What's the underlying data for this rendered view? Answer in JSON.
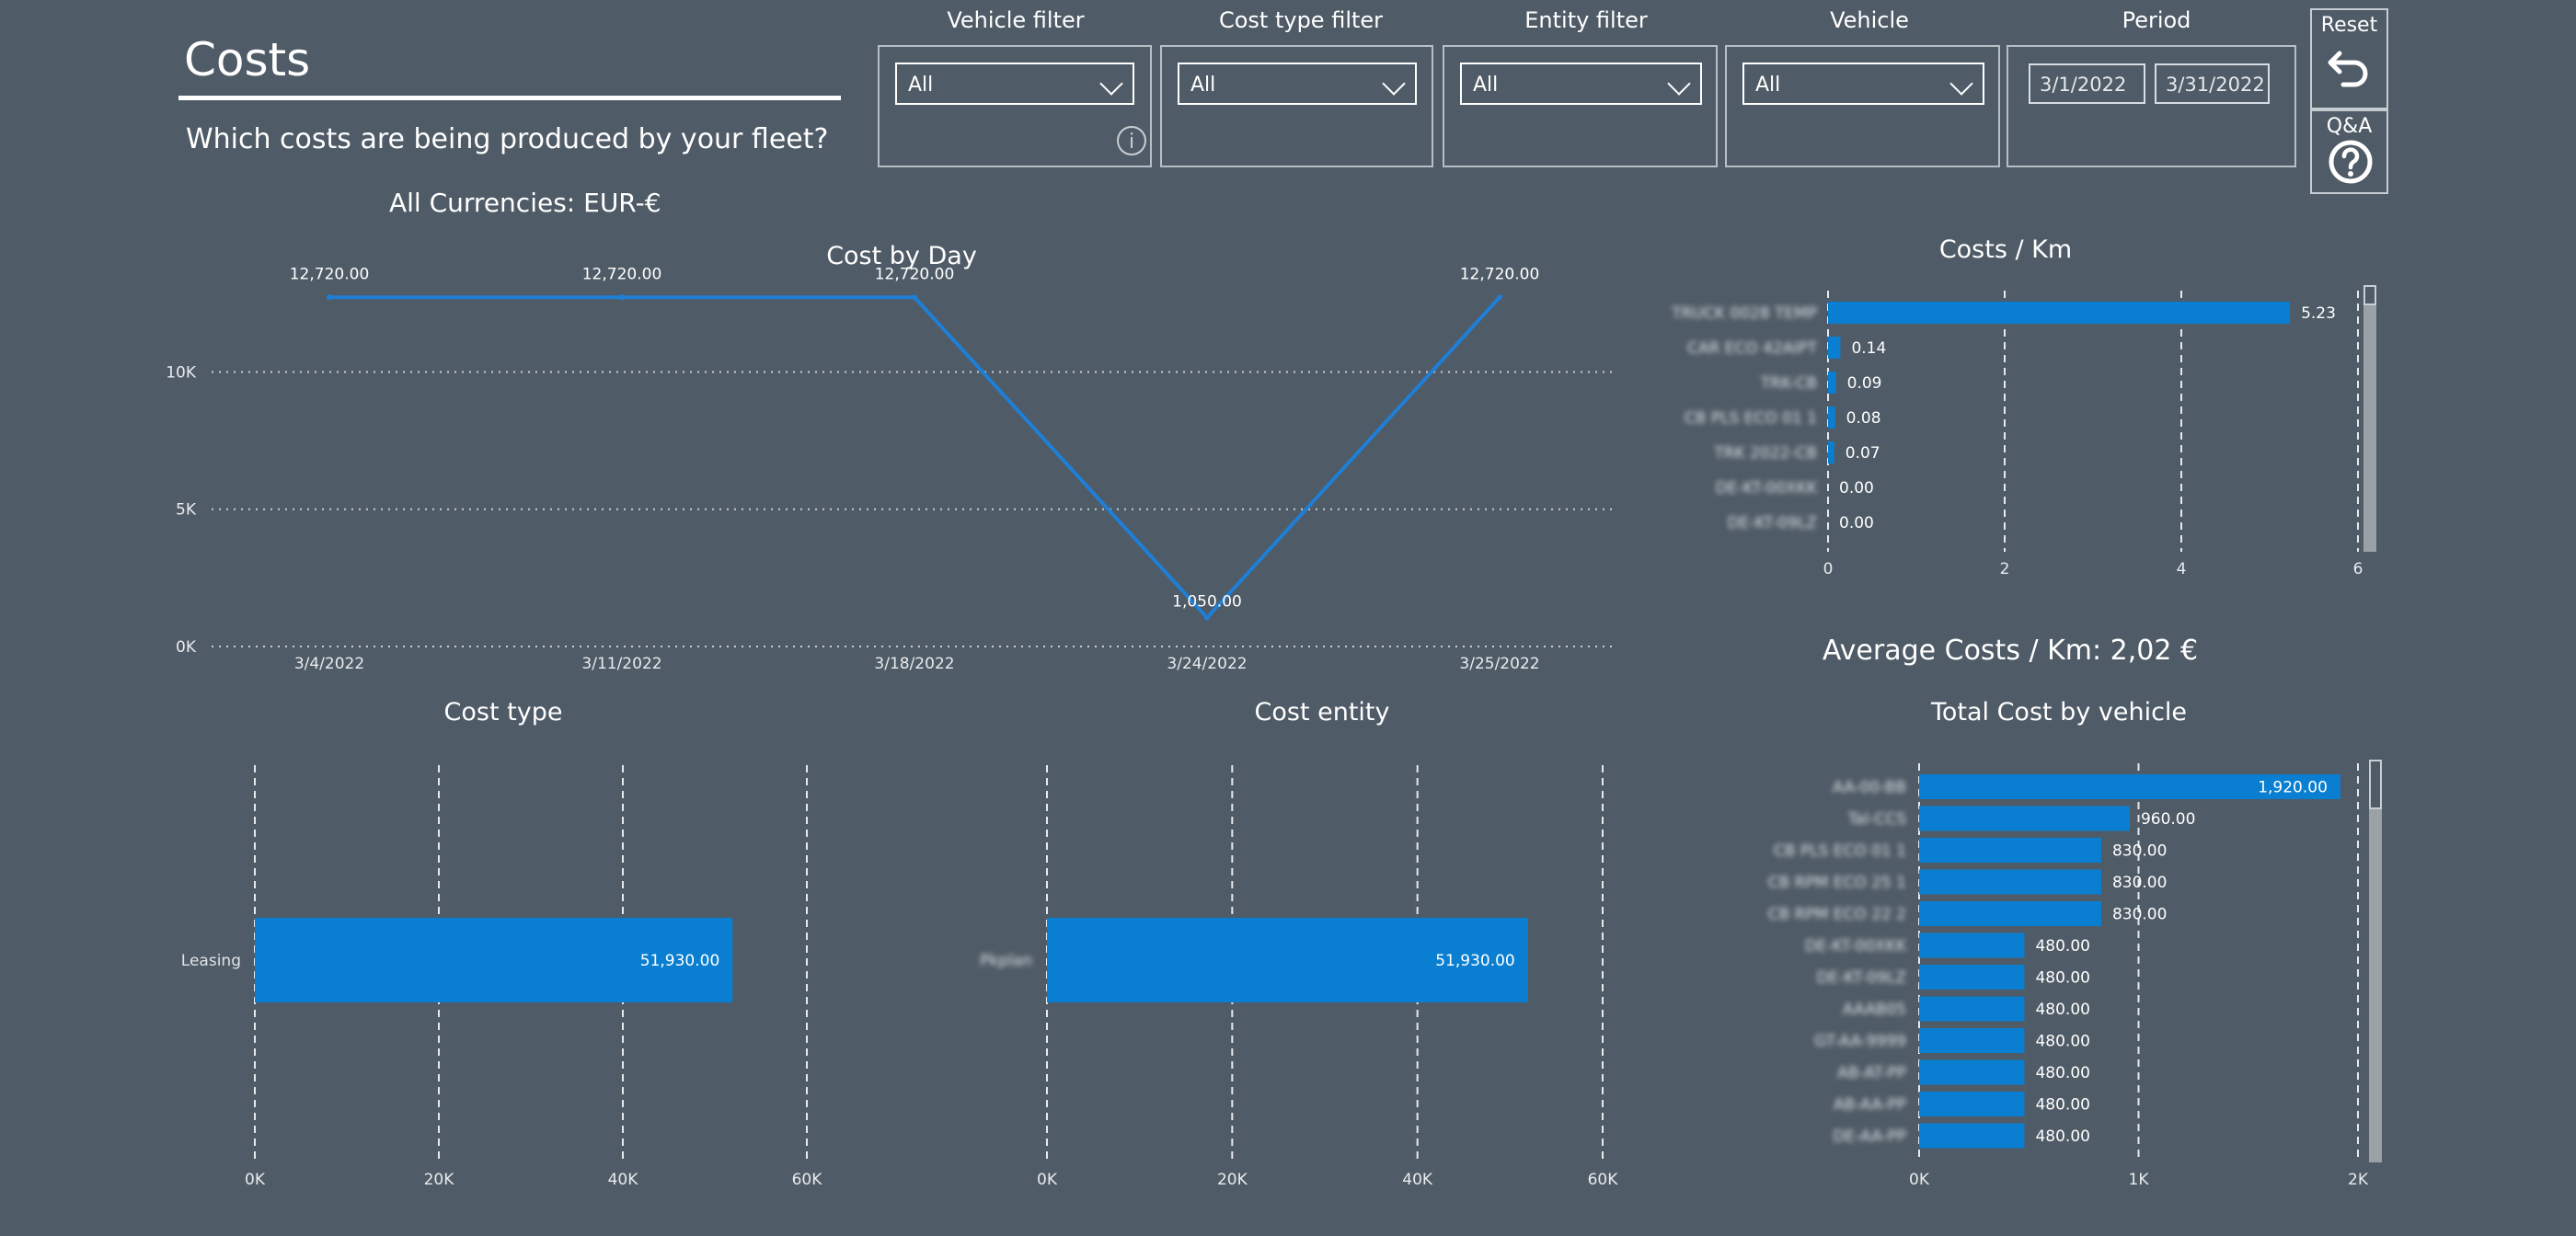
{
  "header": {
    "title": "Costs",
    "subtitle": "Which costs are being produced by your fleet?",
    "currency_note": "All Currencies: EUR-€"
  },
  "filters": [
    {
      "label": "Vehicle filter",
      "value": "All"
    },
    {
      "label": "Cost type filter",
      "value": "All"
    },
    {
      "label": "Entity filter",
      "value": "All"
    },
    {
      "label": "Vehicle",
      "value": "All"
    }
  ],
  "period": {
    "label": "Period",
    "start": "3/1/2022",
    "end": "3/31/2022"
  },
  "side_buttons": {
    "reset_label": "Reset",
    "qa_label": "Q&A"
  },
  "icons": {
    "info": "info-icon",
    "reset": "undo-arrow-icon",
    "qa": "question-circle-icon",
    "dropdown": "chevron-down-icon"
  },
  "colors": {
    "background": "#4f5b66",
    "bar": "#0a7fd1",
    "line": "#1f7fd6"
  },
  "average_costs": "Average Costs / Km: 2,02 €",
  "charts": [
    {
      "id": "cost_by_day",
      "chart_data": {
        "type": "line",
        "title": "Cost by Day",
        "x": [
          "3/4/2022",
          "3/11/2022",
          "3/18/2022",
          "3/24/2022",
          "3/25/2022"
        ],
        "values": [
          12720,
          12720,
          12720,
          1050,
          12720
        ],
        "data_labels": [
          "12,720.00",
          "12,720.00",
          "12,720.00",
          "1,050.00",
          "12,720.00"
        ],
        "y_ticks": [
          "0K",
          "5K",
          "10K"
        ],
        "ylim": [
          0,
          13500
        ],
        "grid": true
      }
    },
    {
      "id": "costs_per_km",
      "chart_data": {
        "type": "bar",
        "orientation": "horizontal",
        "title": "Costs / Km",
        "categories": [
          "TRUCK 0028 TEMP",
          "CAR ECO 42AIPT",
          "TRK-CB",
          "CB PLS ECO 01 1",
          "TRK 2022-CB",
          "DE-KT-00XKK",
          "DE-KT-09LZ"
        ],
        "values": [
          5.23,
          0.14,
          0.09,
          0.08,
          0.07,
          0.0,
          0.0
        ],
        "data_labels": [
          "5.23",
          "0.14",
          "0.09",
          "0.08",
          "0.07",
          "0.00",
          "0.00"
        ],
        "x_ticks": [
          "0",
          "2",
          "4",
          "6"
        ],
        "xlim": [
          0,
          6
        ],
        "labels_obscured": true
      }
    },
    {
      "id": "cost_type",
      "chart_data": {
        "type": "bar",
        "orientation": "horizontal",
        "title": "Cost type",
        "categories": [
          "Leasing"
        ],
        "values": [
          51930
        ],
        "data_labels": [
          "51,930.00"
        ],
        "x_ticks": [
          "0K",
          "20K",
          "40K",
          "60K"
        ],
        "xlim": [
          0,
          60000
        ]
      }
    },
    {
      "id": "cost_entity",
      "chart_data": {
        "type": "bar",
        "orientation": "horizontal",
        "title": "Cost entity",
        "categories": [
          "Pkplan"
        ],
        "values": [
          51930
        ],
        "data_labels": [
          "51,930.00"
        ],
        "x_ticks": [
          "0K",
          "20K",
          "40K",
          "60K"
        ],
        "xlim": [
          0,
          60000
        ],
        "labels_obscured": true
      }
    },
    {
      "id": "total_cost_by_vehicle",
      "chart_data": {
        "type": "bar",
        "orientation": "horizontal",
        "title": "Total Cost by vehicle",
        "categories": [
          "AA-00-BB",
          "Tal-CCS",
          "CB PLS ECO 01 1",
          "CB RPM ECO 25 1",
          "CB RPM ECO 22 2",
          "DE-KT-00XKK",
          "DE-KT-09LZ",
          "AAAB05",
          "GT-AA-9999",
          "AB-AT-PP",
          "AB-AA-PP",
          "DE-AA-PP"
        ],
        "values": [
          1920,
          960,
          830,
          830,
          830,
          480,
          480,
          480,
          480,
          480,
          480,
          480
        ],
        "data_labels": [
          "1,920.00",
          "960.00",
          "830.00",
          "830.00",
          "830.00",
          "480.00",
          "480.00",
          "480.00",
          "480.00",
          "480.00",
          "480.00",
          "480.00"
        ],
        "x_ticks": [
          "0K",
          "1K",
          "2K"
        ],
        "xlim": [
          0,
          2000
        ],
        "labels_obscured": true
      }
    }
  ]
}
